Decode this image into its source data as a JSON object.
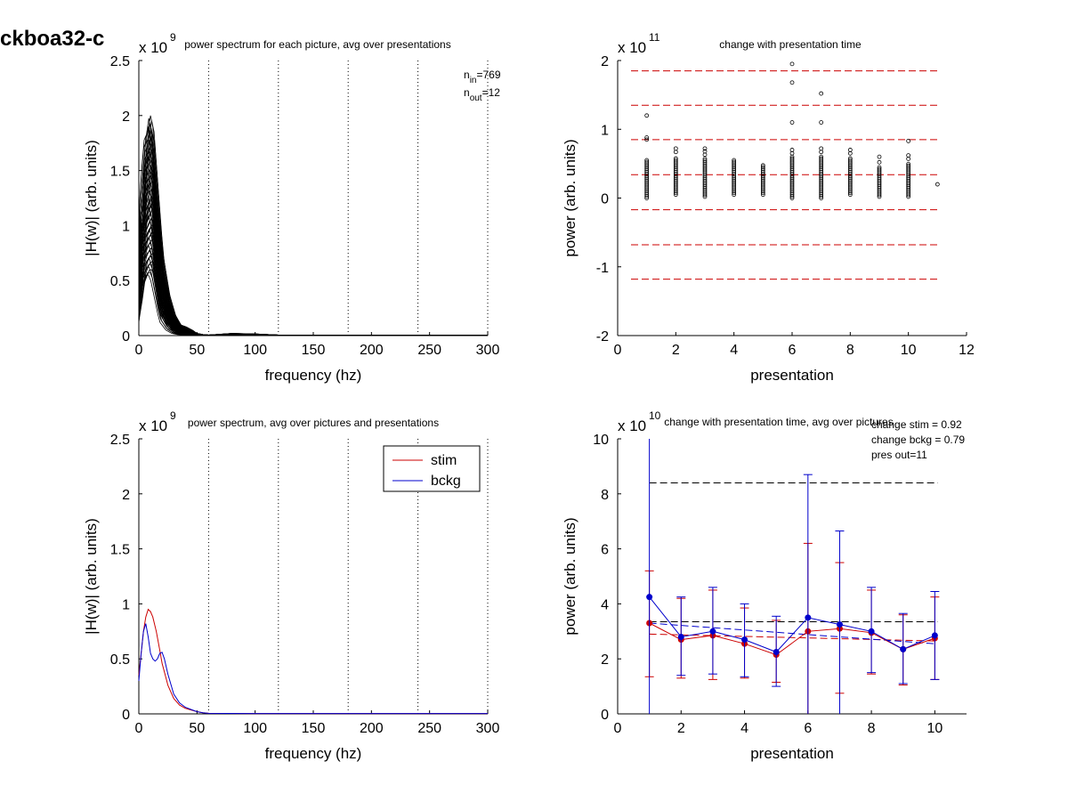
{
  "figure_label": "ckboa32-c",
  "chart_data": [
    {
      "type": "line",
      "title": "power spectrum for each picture, avg over presentations",
      "xlabel": "frequency (hz)",
      "ylabel": "|H(w)| (arb. units)",
      "xlim": [
        0,
        300
      ],
      "ylim": [
        0,
        2.5
      ],
      "xticks": [
        "0",
        "50",
        "100",
        "150",
        "200",
        "250",
        "300"
      ],
      "yticks": [
        "0",
        "0.5",
        "1",
        "1.5",
        "2",
        "2.5"
      ],
      "scale_base": "x 10",
      "scale_exp": "9",
      "vlines_x": [
        60,
        120,
        180,
        240,
        300
      ],
      "annotations": [
        {
          "base": "n",
          "sub": "in",
          "value": "=769"
        },
        {
          "base": "n",
          "sub": "out",
          "value": "=12"
        }
      ],
      "series_count": 60,
      "description": "one spectrum per picture; peaks between 0.5 and 2.0 near 5-15 Hz, decaying to ~0 by 50 Hz",
      "x": [
        0,
        2,
        4,
        6,
        8,
        10,
        12,
        14,
        16,
        18,
        20,
        25,
        30,
        35,
        40,
        45,
        50,
        55,
        60,
        80,
        100,
        120,
        150,
        200,
        250,
        300
      ],
      "envelope_max": [
        0.95,
        1.2,
        1.55,
        1.8,
        1.85,
        2.0,
        1.9,
        1.6,
        1.3,
        1.0,
        0.75,
        0.4,
        0.2,
        0.1,
        0.08,
        0.05,
        0.02,
        0.01,
        0.005,
        0.02,
        0.015,
        0.005,
        0.003,
        0.003,
        0.003,
        0.003
      ],
      "envelope_min": [
        0.1,
        0.3,
        0.45,
        0.5,
        0.55,
        0.55,
        0.5,
        0.4,
        0.3,
        0.2,
        0.12,
        0.05,
        0.02,
        0.01,
        0.005,
        0.003,
        0.002,
        0.001,
        0.001,
        0.002,
        0.002,
        0.001,
        0.001,
        0.001,
        0.001,
        0.001
      ]
    },
    {
      "type": "scatter",
      "title": "change with presentation time",
      "xlabel": "presentation",
      "ylabel": "power (arb. units)",
      "xlim": [
        0,
        12
      ],
      "ylim": [
        -2,
        2
      ],
      "xticks": [
        "0",
        "2",
        "4",
        "6",
        "8",
        "10",
        "12"
      ],
      "yticks": [
        "-2",
        "-1",
        "0",
        "1",
        "2"
      ],
      "scale_base": "x 10",
      "scale_exp": "11",
      "hlines_y": [
        1.85,
        1.35,
        0.85,
        0.34,
        -0.17,
        -0.68,
        -1.18
      ],
      "columns": [
        {
          "x": 1,
          "min": 0.0,
          "max": 0.55,
          "outliers": [
            1.2,
            0.88,
            0.85
          ]
        },
        {
          "x": 2,
          "min": 0.05,
          "max": 0.58,
          "outliers": [
            0.72,
            0.67
          ]
        },
        {
          "x": 3,
          "min": 0.02,
          "max": 0.58,
          "outliers": [
            0.72,
            0.68,
            0.63
          ]
        },
        {
          "x": 4,
          "min": 0.05,
          "max": 0.55,
          "outliers": []
        },
        {
          "x": 5,
          "min": 0.05,
          "max": 0.48,
          "outliers": []
        },
        {
          "x": 6,
          "min": 0.0,
          "max": 0.6,
          "outliers": [
            1.95,
            1.68,
            1.1,
            0.7,
            0.65
          ]
        },
        {
          "x": 7,
          "min": 0.0,
          "max": 0.6,
          "outliers": [
            1.52,
            1.1,
            0.72,
            0.67
          ]
        },
        {
          "x": 8,
          "min": 0.05,
          "max": 0.58,
          "outliers": [
            0.7,
            0.65
          ]
        },
        {
          "x": 9,
          "min": 0.02,
          "max": 0.45,
          "outliers": [
            0.6,
            0.52
          ]
        },
        {
          "x": 10,
          "min": 0.02,
          "max": 0.5,
          "outliers": [
            0.83,
            0.62,
            0.57
          ]
        },
        {
          "x": 11,
          "min": 0.2,
          "max": 0.2,
          "outliers": []
        }
      ]
    },
    {
      "type": "line",
      "title": "power spectrum, avg over pictures and presentations",
      "xlabel": "frequency (hz)",
      "ylabel": "|H(w)| (arb. units)",
      "xlim": [
        0,
        300
      ],
      "ylim": [
        0,
        2.5
      ],
      "xticks": [
        "0",
        "50",
        "100",
        "150",
        "200",
        "250",
        "300"
      ],
      "yticks": [
        "0",
        "0.5",
        "1",
        "1.5",
        "2",
        "2.5"
      ],
      "scale_base": "x 10",
      "scale_exp": "9",
      "vlines_x": [
        60,
        120,
        180,
        240,
        300
      ],
      "legend_position": "top-right",
      "colors": {
        "stim": "#cc0000",
        "bckg": "#0000cc"
      },
      "series": [
        {
          "name": "stim",
          "x": [
            0,
            2,
            4,
            6,
            8,
            10,
            12,
            15,
            18,
            20,
            25,
            30,
            35,
            40,
            45,
            50,
            55,
            60,
            100,
            150,
            200,
            250,
            300
          ],
          "y": [
            0.35,
            0.55,
            0.75,
            0.88,
            0.95,
            0.93,
            0.88,
            0.75,
            0.58,
            0.46,
            0.26,
            0.14,
            0.08,
            0.05,
            0.035,
            0.02,
            0.01,
            0.005,
            0.003,
            0.003,
            0.003,
            0.003,
            0.003
          ]
        },
        {
          "name": "bckg",
          "x": [
            0,
            2,
            4,
            6,
            8,
            10,
            12,
            14,
            16,
            18,
            20,
            22,
            25,
            30,
            35,
            40,
            45,
            50,
            55,
            60,
            100,
            150,
            200,
            250,
            300
          ],
          "y": [
            0.3,
            0.55,
            0.75,
            0.82,
            0.7,
            0.55,
            0.5,
            0.48,
            0.5,
            0.55,
            0.56,
            0.5,
            0.36,
            0.18,
            0.1,
            0.06,
            0.04,
            0.02,
            0.01,
            0.005,
            0.003,
            0.003,
            0.003,
            0.003,
            0.003
          ]
        }
      ]
    },
    {
      "type": "line",
      "title": "change with presentation time, avg over pictures",
      "xlabel": "presentation",
      "ylabel": "power (arb. units)",
      "xlim": [
        0,
        11
      ],
      "ylim": [
        0,
        10
      ],
      "xticks": [
        "0",
        "2",
        "4",
        "6",
        "8",
        "10"
      ],
      "yticks": [
        "0",
        "2",
        "4",
        "6",
        "8",
        "10"
      ],
      "scale_base": "x 10",
      "scale_exp": "10",
      "annotations": [
        "change stim = 0.92",
        "change bckg = 0.79",
        "pres out=11"
      ],
      "colors": {
        "stim": "#cc0000",
        "bckg": "#0000cc"
      },
      "hlines": [
        {
          "y": 8.4,
          "x0": 1,
          "x1": 10.1,
          "color": "#000000"
        },
        {
          "y": 3.35,
          "x0": 1,
          "x1": 10.1,
          "color": "#000000"
        }
      ],
      "trend_lines": [
        {
          "name": "stim",
          "x0": 1,
          "y0": 2.9,
          "x1": 10,
          "y1": 2.65
        },
        {
          "name": "bckg",
          "x0": 1,
          "y0": 3.3,
          "x1": 10,
          "y1": 2.55
        }
      ],
      "series": [
        {
          "name": "stim",
          "x": [
            1,
            2,
            3,
            4,
            5,
            6,
            7,
            8,
            9,
            10
          ],
          "y": [
            3.3,
            2.7,
            2.85,
            2.55,
            2.15,
            3.0,
            3.1,
            2.95,
            2.35,
            2.75
          ],
          "err_lo": [
            1.35,
            1.3,
            1.25,
            1.3,
            1.15,
            0.0,
            0.75,
            1.45,
            1.05,
            1.25
          ],
          "err_hi": [
            5.2,
            4.2,
            4.5,
            3.85,
            3.4,
            6.2,
            5.5,
            4.5,
            3.6,
            4.25
          ]
        },
        {
          "name": "bckg",
          "x": [
            1,
            2,
            3,
            4,
            5,
            6,
            7,
            8,
            9,
            10
          ],
          "y": [
            4.25,
            2.8,
            3.0,
            2.7,
            2.25,
            3.5,
            3.25,
            3.0,
            2.35,
            2.85
          ],
          "err_lo": [
            0.0,
            1.4,
            1.45,
            1.35,
            1.0,
            0.0,
            0.0,
            1.5,
            1.1,
            1.25
          ],
          "err_hi": [
            10.0,
            4.25,
            4.6,
            4.0,
            3.55,
            8.7,
            6.65,
            4.6,
            3.65,
            4.45
          ]
        }
      ]
    }
  ]
}
